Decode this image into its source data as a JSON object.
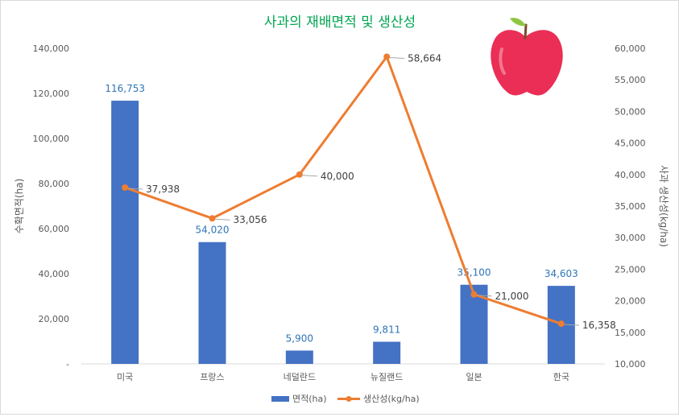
{
  "chart_data": {
    "type": "bar",
    "title": "사과의 재배면적 및 생산성",
    "categories": [
      "미국",
      "프랑스",
      "네덜란드",
      "뉴질랜드",
      "일본",
      "한국"
    ],
    "series": [
      {
        "name": "면적(ha)",
        "type": "bar",
        "axis": "left",
        "values": [
          116753,
          54020,
          5900,
          9811,
          35100,
          34603
        ],
        "labels": [
          "116,753",
          "54,020",
          "5,900",
          "9,811",
          "35,100",
          "34,603"
        ],
        "color": "#4472c4"
      },
      {
        "name": "생산성(kg/ha)",
        "type": "line",
        "axis": "right",
        "values": [
          37938,
          33056,
          40000,
          58664,
          21000,
          16358
        ],
        "labels": [
          "37,938",
          "33,056",
          "40,000",
          "58,664",
          "21,000",
          "16,358"
        ],
        "color": "#ed7d31"
      }
    ],
    "ylabel": "수확면적(ha)",
    "y2label": "사과 생산성(kg/ha)",
    "ylim": [
      0,
      140000
    ],
    "y2lim": [
      10000,
      60000
    ],
    "yticks": [
      "-",
      "20,000",
      "40,000",
      "60,000",
      "80,000",
      "100,000",
      "120,000",
      "140,000"
    ],
    "y2ticks": [
      "10,000",
      "15,000",
      "20,000",
      "25,000",
      "30,000",
      "35,000",
      "40,000",
      "45,000",
      "50,000",
      "55,000",
      "60,000"
    ],
    "legend_position": "bottom",
    "grid": false,
    "decoration_icon": "apple-icon",
    "title_color": "#00a651"
  }
}
